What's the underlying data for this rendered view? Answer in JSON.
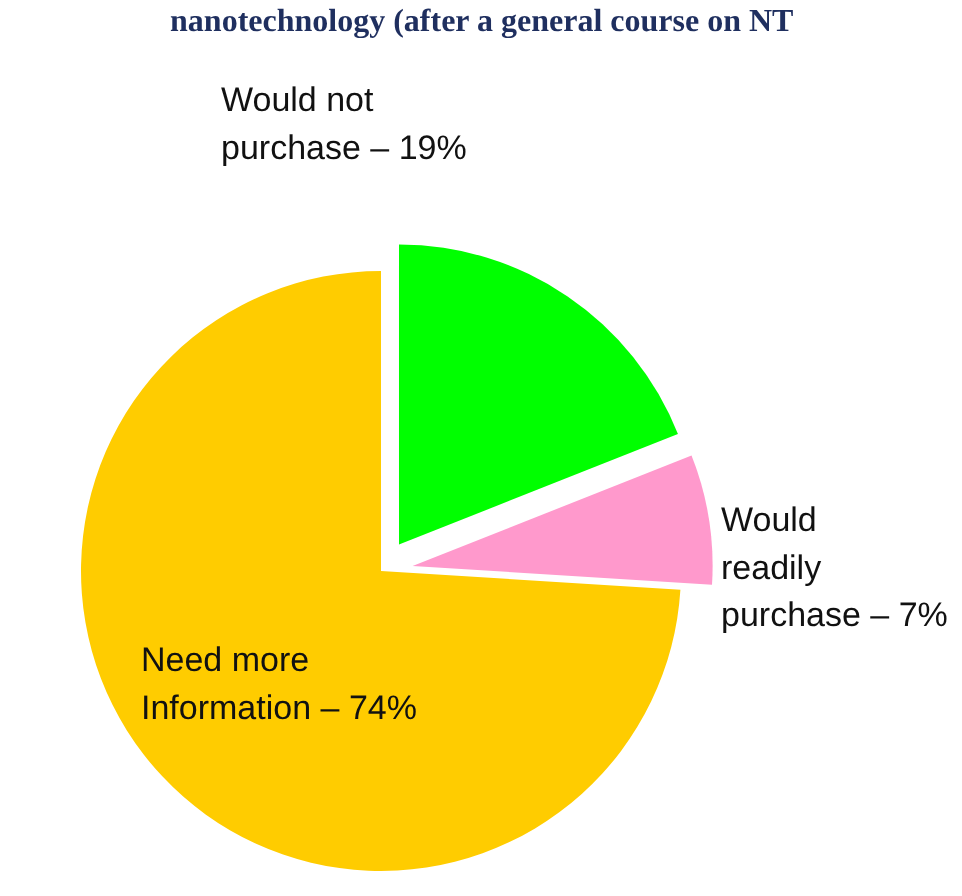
{
  "chart_data": {
    "type": "pie",
    "title": "nanotechnology (after a general course on NT",
    "categories": [
      "Would not purchase",
      "Would readily purchase",
      "Need more Information"
    ],
    "values": [
      19,
      7,
      74
    ],
    "value_labels": [
      "19%",
      "7%",
      "74%"
    ],
    "colors": [
      "#00ff00",
      "#ff99cc",
      "#ffcc00"
    ]
  }
}
